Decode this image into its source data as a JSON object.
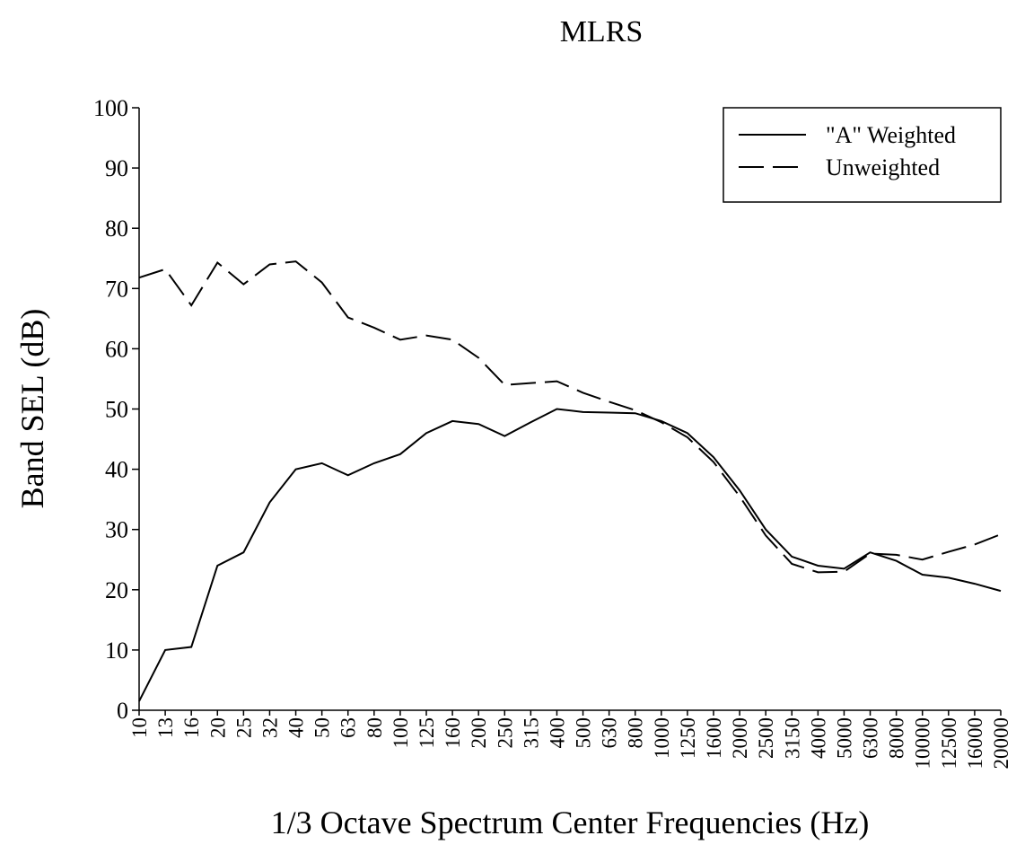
{
  "chart_data": {
    "type": "line",
    "title": "MLRS",
    "x_label": "1/3 Octave Spectrum Center Frequencies (Hz)",
    "y_label": "Band SEL (dB)",
    "categories": [
      "10",
      "13",
      "16",
      "20",
      "25",
      "32",
      "40",
      "50",
      "63",
      "80",
      "100",
      "125",
      "160",
      "200",
      "250",
      "315",
      "400",
      "500",
      "630",
      "800",
      "1000",
      "1250",
      "1600",
      "2000",
      "2500",
      "3150",
      "4000",
      "5000",
      "6300",
      "8000",
      "10000",
      "12500",
      "16000",
      "20000"
    ],
    "series": [
      {
        "name": "\"A\" Weighted",
        "color": "#000000",
        "line_style": "solid",
        "values": [
          1.5,
          10,
          10.5,
          24,
          26.2,
          34.5,
          40,
          41,
          39,
          41,
          42.5,
          46,
          48,
          47.5,
          45.5,
          47.8,
          50,
          49.5,
          49.4,
          49.3,
          48,
          46,
          42,
          36.5,
          30,
          25.5,
          24,
          23.5,
          26.2,
          24.8,
          22.5,
          22,
          21,
          19.8
        ]
      },
      {
        "name": "Unweighted",
        "color": "#000000",
        "line_style": "dashed",
        "values": [
          71.8,
          73.2,
          67.2,
          74.3,
          70.7,
          74,
          74.5,
          71,
          65.2,
          63.5,
          61.5,
          62.2,
          61.5,
          58.5,
          54,
          54.3,
          54.6,
          52.7,
          51.2,
          49.8,
          47.8,
          45.3,
          41.2,
          35.5,
          29,
          24.3,
          22.9,
          23,
          26,
          25.8,
          25,
          26.3,
          27.5,
          29.2
        ]
      }
    ],
    "ylim": [
      0,
      100
    ],
    "yticks": [
      0,
      10,
      20,
      30,
      40,
      50,
      60,
      70,
      80,
      90,
      100
    ],
    "grid": false,
    "legend": "top-right"
  }
}
